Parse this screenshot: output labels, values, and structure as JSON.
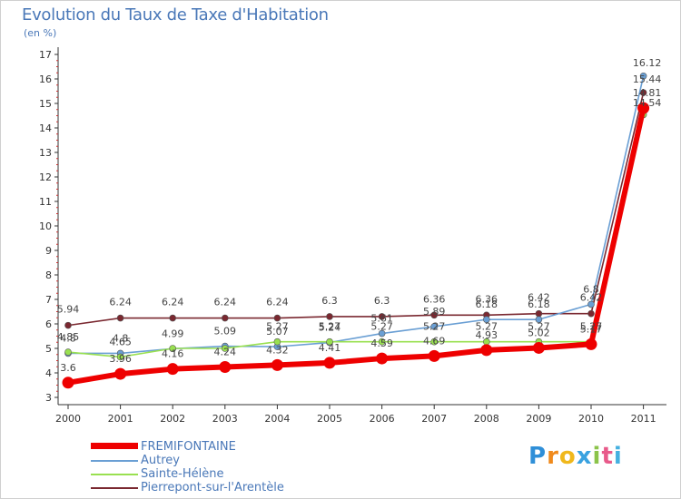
{
  "chart_data": {
    "type": "line",
    "title": "Evolution du Taux de Taxe d'Habitation",
    "ylabel": "(en %)",
    "xlabel": "",
    "x": [
      "2000",
      "2001",
      "2002",
      "2003",
      "2004",
      "2005",
      "2006",
      "2007",
      "2008",
      "2009",
      "2010",
      "2011"
    ],
    "ylim": [
      3,
      17
    ],
    "yticks": [
      3,
      4,
      5,
      6,
      7,
      8,
      9,
      10,
      11,
      12,
      13,
      14,
      15,
      16,
      17
    ],
    "grid": false,
    "series": [
      {
        "name": "FREMIFONTAINE",
        "color": "#ee0000",
        "values": [
          3.6,
          3.96,
          4.16,
          4.24,
          4.32,
          4.41,
          4.59,
          4.69,
          4.93,
          5.02,
          5.17,
          14.81
        ],
        "labels": [
          "3.6",
          "3.96",
          "4.16",
          "4.24",
          "4.32",
          "4.41",
          "4.59",
          "4.69",
          "4.93",
          "5.02",
          "5.17",
          "14.81"
        ]
      },
      {
        "name": "Autrey",
        "color": "#6a9fd4",
        "values": [
          4.8,
          4.8,
          4.99,
          5.09,
          5.07,
          5.24,
          5.61,
          5.89,
          6.18,
          6.18,
          6.8,
          16.12
        ],
        "labels": [
          "4.8",
          "4.8",
          "4.99",
          "5.09",
          "5.07",
          "5.24",
          "5.61",
          "5.89",
          "6.18",
          "6.18",
          "6.8",
          "16.12"
        ]
      },
      {
        "name": "Sainte-Hélène",
        "color": "#99e050",
        "values": [
          4.85,
          4.65,
          5.0,
          5.0,
          5.27,
          5.27,
          5.27,
          5.27,
          5.27,
          5.27,
          5.27,
          14.54
        ],
        "labels": [
          "4.85",
          "4.65",
          "",
          "",
          "5.27",
          "5.27",
          "5.27",
          "5.27",
          "5.27",
          "5.27",
          "5.27",
          "14.54"
        ]
      },
      {
        "name": "Pierrepont-sur-l'Arentèle",
        "color": "#7a2830",
        "values": [
          5.94,
          6.24,
          6.24,
          6.24,
          6.24,
          6.3,
          6.3,
          6.36,
          6.36,
          6.42,
          6.42,
          15.44
        ],
        "labels": [
          "5.94",
          "6.24",
          "6.24",
          "6.24",
          "6.24",
          "6.3",
          "6.3",
          "6.36",
          "6.36",
          "6.42",
          "6.42",
          "15.44"
        ]
      }
    ]
  },
  "legend": {
    "items": [
      {
        "name": "FREMIFONTAINE",
        "color": "#ee0000"
      },
      {
        "name": "Autrey",
        "color": "#6a9fd4"
      },
      {
        "name": "Sainte-Hélène",
        "color": "#99e050"
      },
      {
        "name": "Pierrepont-sur-l'Arentèle",
        "color": "#7a2830"
      }
    ]
  },
  "logo": {
    "letters": [
      "P",
      "r",
      "o",
      "x",
      "i",
      "t",
      "i"
    ],
    "colors": [
      "#2f8fd8",
      "#f08a1c",
      "#f0b81c",
      "#3aa2e0",
      "#8bc34a",
      "#e85a8a",
      "#45b0e0"
    ]
  }
}
